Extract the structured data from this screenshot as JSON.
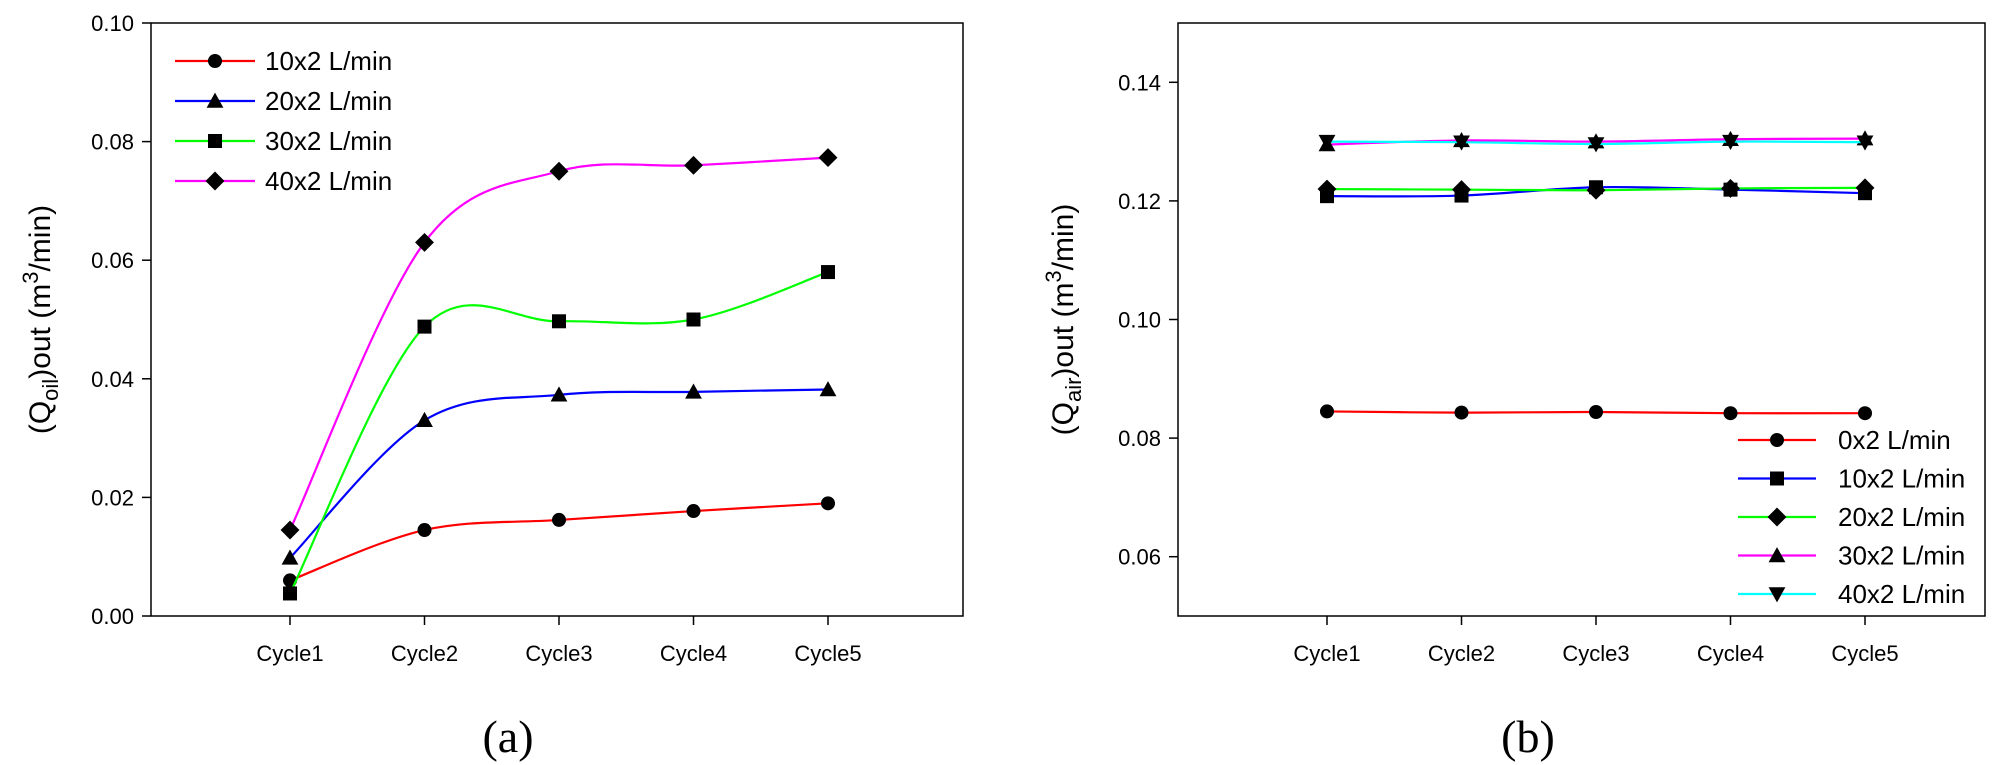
{
  "chart_data": [
    {
      "type": "line",
      "panel_label": "(a)",
      "ylabel": {
        "open": "(Q",
        "sub": "oil",
        "mid": ")out (m",
        "sup": "3",
        "close": "/min)"
      },
      "categories": [
        "Cycle1",
        "Cycle2",
        "Cycle3",
        "Cycle4",
        "Cycle5"
      ],
      "ylim": [
        0,
        0.1
      ],
      "yticks": [
        "0.00",
        "0.02",
        "0.04",
        "0.06",
        "0.08",
        "0.10"
      ],
      "legend_position": "top-left",
      "grid": false,
      "series": [
        {
          "name": "10x2 L/min",
          "color": "#ff0000",
          "marker": "circle",
          "values": [
            0.006,
            0.0145,
            0.0162,
            0.0177,
            0.019
          ]
        },
        {
          "name": "20x2 L/min",
          "color": "#0000ff",
          "marker": "triangle-up",
          "values": [
            0.0098,
            0.033,
            0.0373,
            0.0378,
            0.0382
          ]
        },
        {
          "name": "30x2 L/min",
          "color": "#00ff00",
          "marker": "square",
          "values": [
            0.0038,
            0.0488,
            0.0497,
            0.05,
            0.058
          ]
        },
        {
          "name": "40x2 L/min",
          "color": "#ff00ff",
          "marker": "diamond",
          "values": [
            0.0145,
            0.063,
            0.075,
            0.076,
            0.0773
          ]
        }
      ]
    },
    {
      "type": "line",
      "panel_label": "(b)",
      "ylabel": {
        "open": "(Q",
        "sub": "air",
        "mid": ")out (m",
        "sup": "3",
        "close": "/min)"
      },
      "categories": [
        "Cycle1",
        "Cycle2",
        "Cycle3",
        "Cycle4",
        "Cycle5"
      ],
      "ylim": [
        0.05,
        0.15
      ],
      "yticks": [
        "0.06",
        "0.08",
        "0.10",
        "0.12",
        "0.14"
      ],
      "legend_position": "bottom-right",
      "grid": false,
      "series": [
        {
          "name": "0x2 L/min",
          "color": "#ff0000",
          "marker": "circle",
          "values": [
            0.0845,
            0.0843,
            0.0844,
            0.0842,
            0.0842
          ]
        },
        {
          "name": "10x2 L/min",
          "color": "#0000ff",
          "marker": "square",
          "values": [
            0.1208,
            0.1209,
            0.1223,
            0.1219,
            0.1213
          ]
        },
        {
          "name": "20x2 L/min",
          "color": "#00ff00",
          "marker": "diamond",
          "values": [
            0.122,
            0.1219,
            0.1218,
            0.1221,
            0.1222
          ]
        },
        {
          "name": "30x2 L/min",
          "color": "#ff00ff",
          "marker": "triangle-up",
          "values": [
            0.1295,
            0.1302,
            0.13,
            0.1304,
            0.1305
          ]
        },
        {
          "name": "40x2 L/min",
          "color": "#00ffff",
          "marker": "triangle-down",
          "values": [
            0.13,
            0.1299,
            0.1296,
            0.13,
            0.1299
          ]
        }
      ]
    }
  ]
}
